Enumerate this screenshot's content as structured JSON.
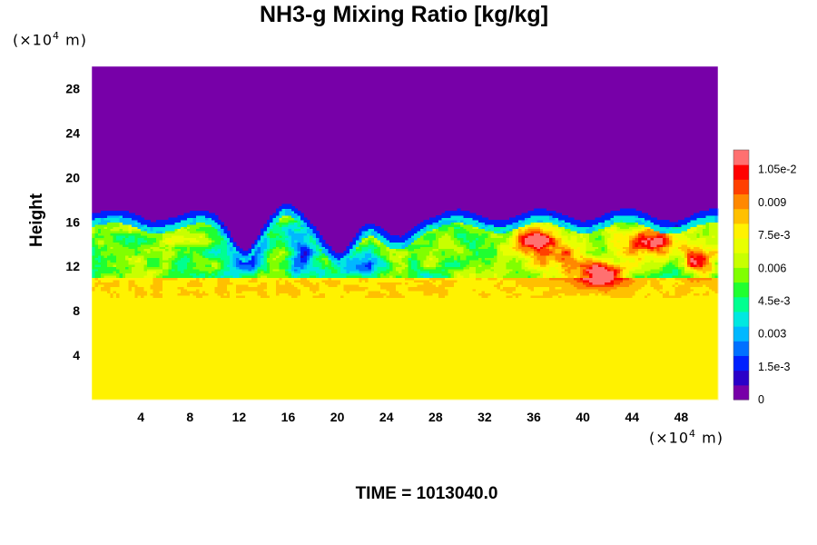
{
  "chart_data": {
    "type": "heatmap",
    "title": "NH3-g Mixing Ratio [kg/kg]",
    "ylabel": "Height",
    "x_unit": {
      "prefix": "(×10",
      "exp": "4",
      "suffix": " m)"
    },
    "y_unit": {
      "prefix": "(×10",
      "exp": "4",
      "suffix": " m)"
    },
    "x_ticks": [
      4,
      8,
      12,
      16,
      20,
      24,
      28,
      32,
      36,
      40,
      44,
      48
    ],
    "y_ticks": [
      4,
      8,
      12,
      16,
      20,
      24,
      28
    ],
    "xlim": [
      0,
      51
    ],
    "ylim": [
      0,
      30
    ],
    "colorbar": {
      "range": [
        0,
        0.0114
      ],
      "tick_values": [
        0,
        0.0015,
        0.003,
        0.0045,
        0.006,
        0.0075,
        0.009,
        0.0105
      ],
      "tick_labels": [
        "0",
        "1.5e-3",
        "0.003",
        "4.5e-3",
        "0.006",
        "7.5e-3",
        "0.009",
        "1.05e-2"
      ],
      "colors": [
        "#7700a8",
        "#2a00c8",
        "#0020ff",
        "#0070ff",
        "#00b8ff",
        "#00e8e0",
        "#00ff90",
        "#20ff30",
        "#80ff00",
        "#c8ff00",
        "#e8ff00",
        "#fff200",
        "#ffc000",
        "#ff8800",
        "#ff4000",
        "#ff0000",
        "#ff7070"
      ]
    },
    "field_approx": {
      "description_levels": "upper region (height > ~16) is 0; lower layer (height < ~9.5) about 0.0078; mixed layer 9.5–16 ranges 0.002–0.011 with maxima near x=36–50",
      "upper_value": 0,
      "lower_value": 0.0078
    },
    "footer": {
      "label": "TIME = ",
      "value": "1013040.0"
    }
  }
}
